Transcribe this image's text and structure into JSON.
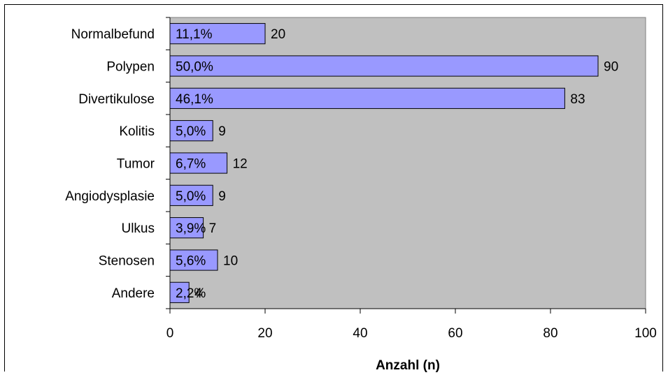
{
  "chart_data": {
    "type": "bar",
    "orientation": "horizontal",
    "categories": [
      "Normalbefund",
      "Polypen",
      "Divertikulose",
      "Kolitis",
      "Tumor",
      "Angiodysplasie",
      "Ulkus",
      "Stenosen",
      "Andere"
    ],
    "values": [
      20,
      90,
      83,
      9,
      12,
      9,
      7,
      10,
      4
    ],
    "percent_labels": [
      "11,1%",
      "50,0%",
      "46,1%",
      "5,0%",
      "6,7%",
      "5,0%",
      "3,9%",
      "5,6%",
      "2,2%"
    ],
    "xlabel": "Anzahl (n)",
    "xlim": [
      0,
      100
    ],
    "xticks": [
      0,
      20,
      40,
      60,
      80,
      100
    ],
    "grid": false,
    "colors": {
      "plot_background": "#c0c0c0",
      "bar_fill": "#9999ff",
      "bar_stroke": "#000000"
    }
  }
}
